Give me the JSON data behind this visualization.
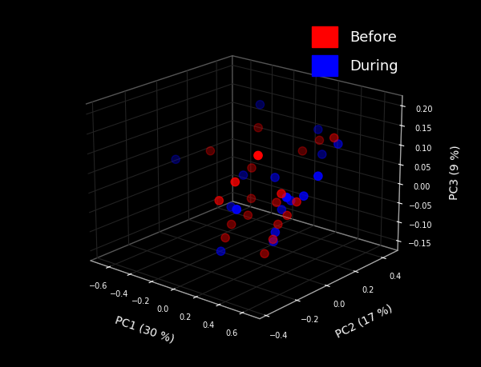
{
  "xlabel": "PC1 (30 %)",
  "ylabel": "PC2 (17 %)",
  "zlabel": "PC3 (9 %)",
  "background_color": "#000000",
  "text_color": "#ffffff",
  "axis_color": "#aaaaaa",
  "marker_size": 55,
  "before_color": "#ff0000",
  "during_color": "#0000ff",
  "before_points": [
    [
      -0.25,
      0.3,
      0.1
    ],
    [
      0.05,
      0.38,
      0.05
    ],
    [
      0.15,
      0.42,
      0.08
    ],
    [
      0.4,
      0.32,
      0.12
    ],
    [
      -0.45,
      0.12,
      0.05
    ],
    [
      -0.15,
      0.18,
      0.02
    ],
    [
      -0.1,
      0.14,
      -0.05
    ],
    [
      -0.05,
      0.08,
      -0.08
    ],
    [
      -0.12,
      0.02,
      -0.1
    ],
    [
      -0.08,
      -0.05,
      -0.12
    ],
    [
      0.18,
      0.1,
      -0.03
    ],
    [
      0.22,
      0.08,
      -0.08
    ],
    [
      0.3,
      0.08,
      -0.05
    ],
    [
      0.18,
      0.02,
      -0.15
    ],
    [
      0.28,
      0.0,
      -0.1
    ],
    [
      0.42,
      0.05,
      0.0
    ],
    [
      0.48,
      -0.1,
      0.05
    ],
    [
      0.35,
      -0.3,
      0.1
    ],
    [
      0.1,
      -0.22,
      0.02
    ],
    [
      0.65,
      -0.38,
      0.2
    ]
  ],
  "during_points": [
    [
      -0.3,
      0.35,
      0.15
    ],
    [
      0.1,
      0.45,
      0.1
    ],
    [
      0.2,
      0.4,
      0.05
    ],
    [
      0.4,
      0.35,
      0.1
    ],
    [
      -0.68,
      0.05,
      0.02
    ],
    [
      -0.2,
      0.16,
      0.0
    ],
    [
      -0.18,
      0.1,
      -0.08
    ],
    [
      -0.15,
      0.04,
      -0.06
    ],
    [
      0.2,
      0.12,
      -0.05
    ],
    [
      0.28,
      0.12,
      -0.02
    ],
    [
      0.1,
      0.15,
      0.02
    ],
    [
      0.22,
      0.05,
      -0.12
    ],
    [
      0.3,
      0.0,
      -0.08
    ],
    [
      0.48,
      0.05,
      0.02
    ],
    [
      0.6,
      0.05,
      0.08
    ],
    [
      0.2,
      -0.18,
      0.0
    ],
    [
      0.55,
      -0.12,
      0.05
    ],
    [
      -0.08,
      -0.08,
      -0.15
    ]
  ],
  "elev": 20,
  "azim": -50,
  "figsize": [
    6.0,
    4.59
  ],
  "dpi": 100,
  "legend_fontsize": 13,
  "axis_label_fontsize": 10
}
